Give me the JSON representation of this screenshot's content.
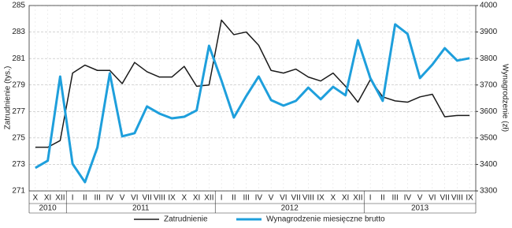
{
  "chart_data": {
    "type": "line",
    "y_label": "Zatrudnienie (tys.)",
    "y2_label": "Wynagrodzenie (zł)",
    "categories": [
      "X",
      "XI",
      "XII",
      "I",
      "II",
      "III",
      "IV",
      "V",
      "VI",
      "VII",
      "VIII",
      "IX",
      "X",
      "XI",
      "XII",
      "I",
      "II",
      "III",
      "IV",
      "V",
      "VI",
      "VII",
      "VIII",
      "IX",
      "X",
      "XI",
      "XII",
      "I",
      "II",
      "III",
      "IV",
      "V",
      "VI",
      "VII",
      "VIII",
      "IX"
    ],
    "year_groups": [
      {
        "label": "2010",
        "months": 3
      },
      {
        "label": "2011",
        "months": 12
      },
      {
        "label": "2012",
        "months": 12
      },
      {
        "label": "2013",
        "months": 9
      }
    ],
    "series": [
      {
        "name": "Zatrudnienie",
        "color": "#1a1a1a",
        "axis": "y",
        "values": [
          274.3,
          274.3,
          274.8,
          279.9,
          280.5,
          280.1,
          280.1,
          279.1,
          280.7,
          280.0,
          279.6,
          279.6,
          280.4,
          278.9,
          279.0,
          283.9,
          282.8,
          283.0,
          282.0,
          280.1,
          279.9,
          280.2,
          279.6,
          279.3,
          279.9,
          278.9,
          277.7,
          279.4,
          278.1,
          277.8,
          277.7,
          278.1,
          278.3,
          276.6,
          276.7,
          276.7
        ]
      },
      {
        "name": "Wynagrodzenie miesięczne brutto",
        "color": "#1e9fdc",
        "axis": "y2",
        "values": [
          3387,
          3414,
          3732,
          3402,
          3333,
          3464,
          3744,
          3506,
          3518,
          3619,
          3592,
          3574,
          3580,
          3604,
          3848,
          3717,
          3577,
          3658,
          3732,
          3643,
          3622,
          3640,
          3690,
          3646,
          3693,
          3661,
          3869,
          3726,
          3640,
          3929,
          3893,
          3726,
          3777,
          3839,
          3792,
          3801
        ]
      }
    ],
    "ylim": [
      271,
      285
    ],
    "yticks": [
      271,
      273,
      275,
      277,
      279,
      281,
      283,
      285
    ],
    "y2lim": [
      3300,
      4000
    ],
    "y2ticks": [
      3300,
      3400,
      3500,
      3600,
      3700,
      3800,
      3900,
      4000
    ],
    "grid": true,
    "legend": "bottom"
  }
}
